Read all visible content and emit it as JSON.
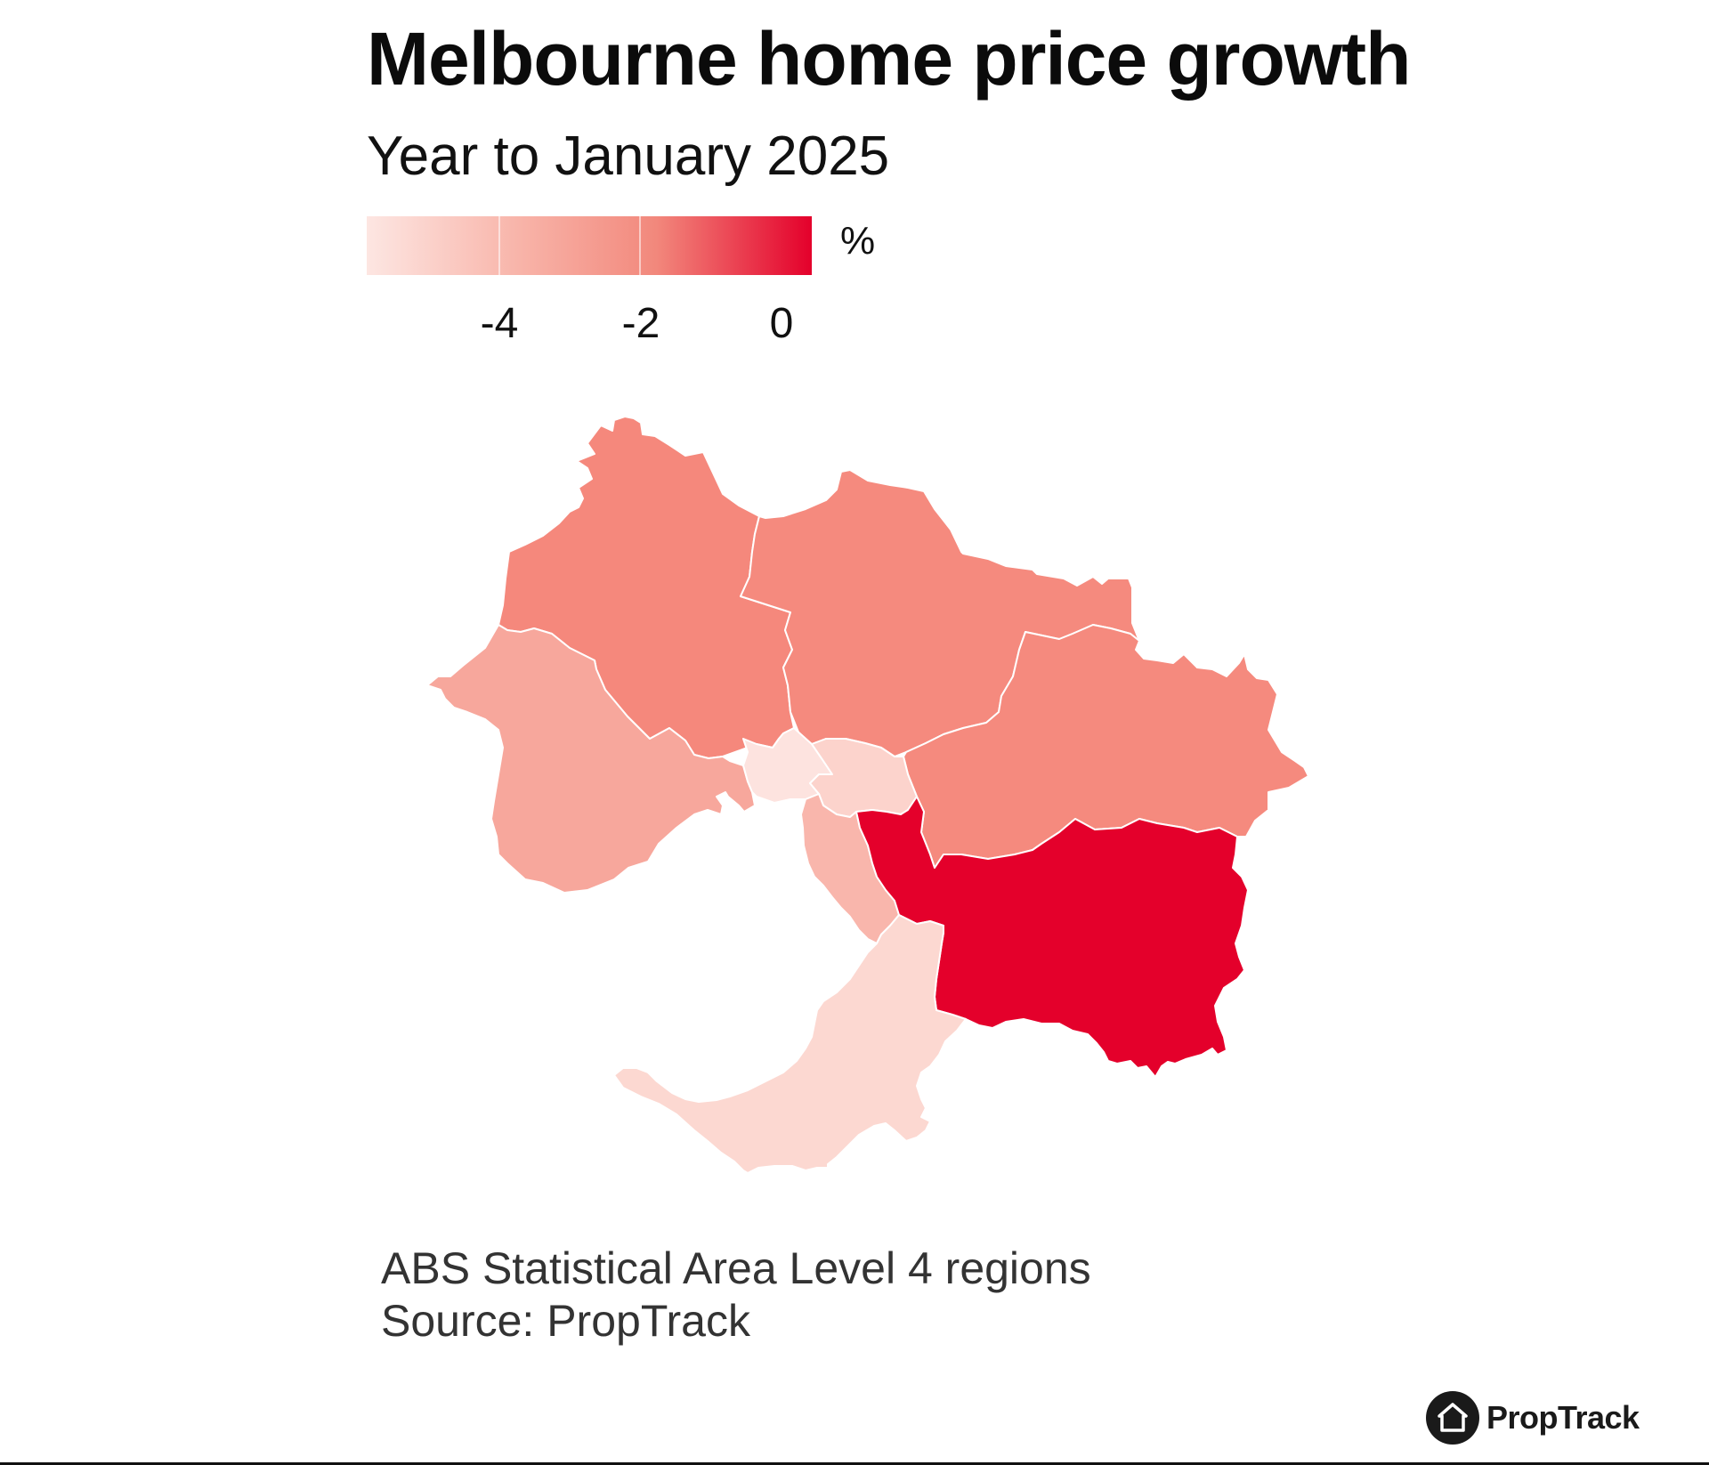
{
  "header": {
    "title": "Melbourne home price growth",
    "subtitle": "Year to January 2025"
  },
  "legend": {
    "unit": "%",
    "ticks": [
      "-4",
      "-2",
      "0"
    ],
    "color_low": "#fde6e2",
    "color_high": "#e4002b"
  },
  "map": {
    "regions": [
      {
        "id": "north-west",
        "fill": "#f5887c"
      },
      {
        "id": "north-east",
        "fill": "#f58a7e"
      },
      {
        "id": "outer-east",
        "fill": "#f58a7e"
      },
      {
        "id": "west",
        "fill": "#f7a79c"
      },
      {
        "id": "inner",
        "fill": "#fde3df"
      },
      {
        "id": "inner-east",
        "fill": "#fcd3cc"
      },
      {
        "id": "inner-south",
        "fill": "#f9b6ac"
      },
      {
        "id": "south-east",
        "fill": "#e4002b"
      },
      {
        "id": "mornington-peninsula",
        "fill": "#fcd8d1"
      }
    ]
  },
  "footer": {
    "caption_line1": "ABS Statistical Area Level 4 regions",
    "caption_line2": "Source: PropTrack",
    "logo_text": "PropTrack"
  }
}
